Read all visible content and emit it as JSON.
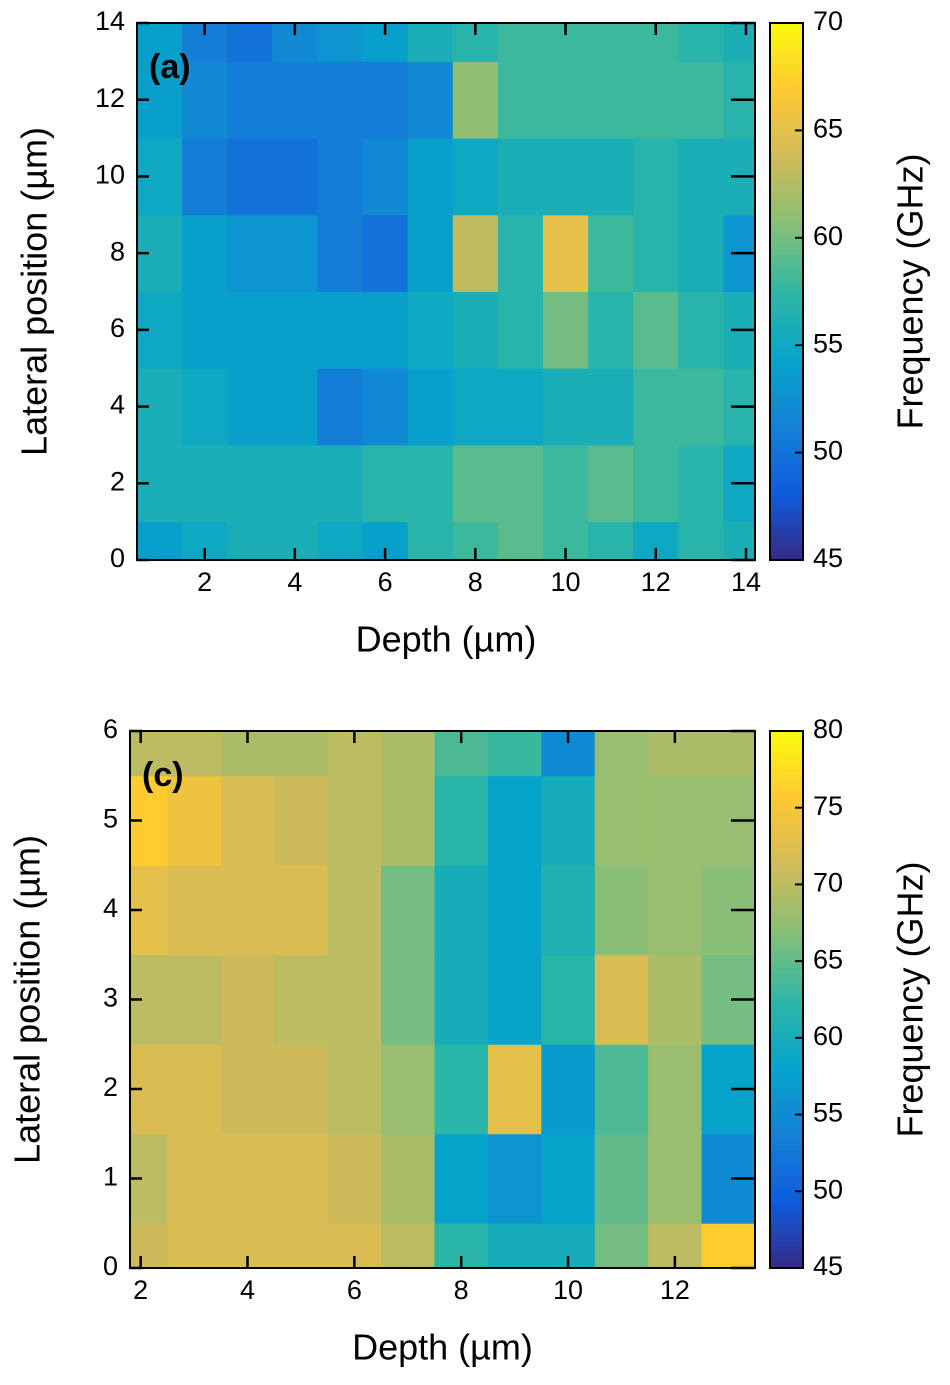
{
  "chart_data": [
    {
      "type": "heatmap",
      "panel_label": "(a)",
      "label_color": "#ffffff",
      "xlabel": "Depth (µm)",
      "ylabel": "Lateral position (µm)",
      "colorbar_label": "Frequency (GHz)",
      "x": [
        1,
        2,
        3,
        4,
        5,
        6,
        7,
        8,
        9,
        10,
        11,
        12,
        13,
        14
      ],
      "y": [
        0,
        2,
        4,
        6,
        8,
        10,
        12,
        14
      ],
      "z": [
        [
          54,
          55,
          56,
          56,
          55,
          54,
          57,
          58,
          59,
          58,
          57,
          55,
          57,
          56
        ],
        [
          56,
          56,
          56,
          56,
          56,
          57,
          57,
          59,
          59,
          58,
          59,
          58,
          57,
          55
        ],
        [
          56,
          55,
          54,
          54,
          51,
          52,
          54,
          55,
          55,
          56,
          56,
          58,
          58,
          57
        ],
        [
          55,
          54,
          54,
          54,
          54,
          54,
          55,
          56,
          57,
          60,
          57,
          59,
          57,
          56
        ],
        [
          56,
          54,
          53,
          53,
          51,
          50,
          54,
          63,
          57,
          65,
          58,
          57,
          56,
          53
        ],
        [
          55,
          51,
          50,
          50,
          51,
          52,
          54,
          55,
          56,
          56,
          56,
          57,
          56,
          56
        ],
        [
          54,
          52,
          51,
          51,
          51,
          51,
          52,
          61,
          58,
          58,
          58,
          58,
          58,
          57
        ],
        [
          54,
          51,
          50,
          52,
          53,
          54,
          56,
          57,
          58,
          58,
          58,
          58,
          57,
          56
        ]
      ],
      "xlim": [
        0.5,
        14.2
      ],
      "ylim": [
        0,
        14
      ],
      "xticks": [
        2,
        4,
        6,
        8,
        10,
        12,
        14
      ],
      "yticks": [
        0,
        2,
        4,
        6,
        8,
        10,
        12,
        14
      ],
      "clim": [
        45,
        70
      ],
      "cticks": [
        45,
        50,
        55,
        60,
        65,
        70
      ],
      "colormap": [
        "#352a87",
        "#0f5cdd",
        "#1481d6",
        "#06a4ca",
        "#2eb7a4",
        "#87bf77",
        "#d1bb59",
        "#fec832",
        "#f9fb0e"
      ]
    },
    {
      "type": "heatmap",
      "panel_label": "(c)",
      "label_color": "#000000",
      "xlabel": "Depth (µm)",
      "ylabel": "Lateral position (µm)",
      "colorbar_label": "Frequency (GHz)",
      "x": [
        2,
        3,
        4,
        5,
        6,
        7,
        8,
        9,
        10,
        11,
        12,
        13
      ],
      "y": [
        0,
        1,
        2,
        3,
        4,
        5,
        6
      ],
      "z": [
        [
          71,
          72,
          72,
          72,
          72,
          70,
          62,
          60,
          60,
          66,
          70,
          76
        ],
        [
          70,
          72,
          72,
          72,
          71,
          69,
          58,
          56,
          58,
          65,
          68,
          55
        ],
        [
          72,
          72,
          71,
          71,
          70,
          68,
          62,
          73,
          57,
          64,
          68,
          58
        ],
        [
          70,
          70,
          71,
          70,
          70,
          66,
          60,
          58,
          62,
          72,
          69,
          66
        ],
        [
          73,
          72,
          72,
          72,
          70,
          66,
          60,
          58,
          61,
          67,
          68,
          67
        ],
        [
          76,
          74,
          72,
          71,
          70,
          69,
          62,
          58,
          60,
          68,
          68,
          68
        ],
        [
          70,
          70,
          69,
          69,
          70,
          69,
          64,
          63,
          55,
          68,
          69,
          69
        ]
      ],
      "xlim": [
        1.8,
        13.5
      ],
      "ylim": [
        0,
        6
      ],
      "xticks": [
        2,
        4,
        6,
        8,
        10,
        12
      ],
      "yticks": [
        0,
        1,
        2,
        3,
        4,
        5,
        6
      ],
      "clim": [
        45,
        80
      ],
      "cticks": [
        45,
        50,
        55,
        60,
        65,
        70,
        75,
        80
      ],
      "colormap": [
        "#352a87",
        "#0f5cdd",
        "#1481d6",
        "#06a4ca",
        "#2eb7a4",
        "#87bf77",
        "#d1bb59",
        "#fec832",
        "#f9fb0e"
      ]
    }
  ]
}
